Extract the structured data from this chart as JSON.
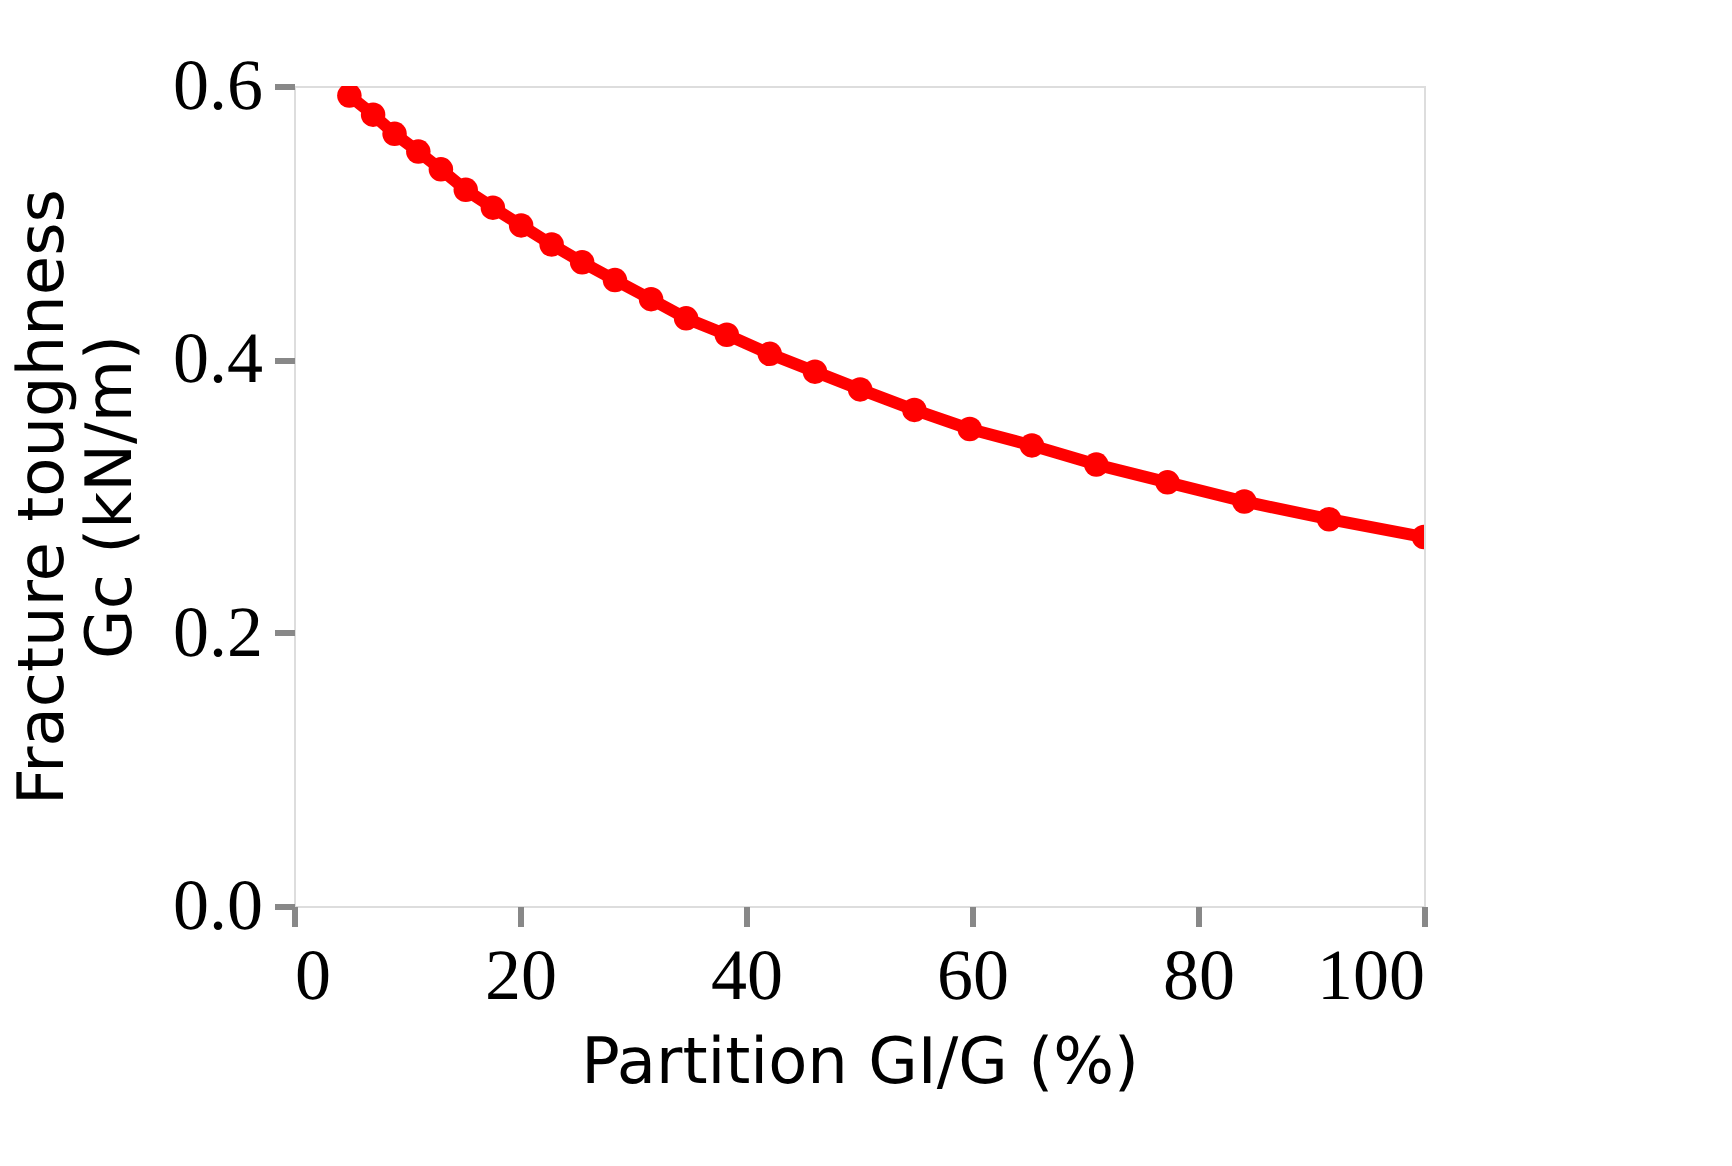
{
  "chart_data": {
    "type": "line",
    "xlabel": "Partition GI/G (%)",
    "ylabel": "Fracture toughness\nGc (kN/m)",
    "x": [
      4.9,
      7.0,
      8.9,
      11.0,
      13.0,
      15.2,
      17.6,
      20.1,
      22.8,
      25.5,
      28.4,
      31.6,
      34.7,
      38.3,
      42.1,
      46.1,
      50.1,
      54.9,
      59.8,
      65.3,
      71.0,
      77.3,
      84.1,
      91.6,
      100
    ],
    "series": [
      {
        "color": "#ff0000",
        "values": [
          0.593,
          0.579,
          0.565,
          0.552,
          0.539,
          0.524,
          0.511,
          0.498,
          0.484,
          0.471,
          0.458,
          0.444,
          0.43,
          0.418,
          0.404,
          0.391,
          0.378,
          0.363,
          0.349,
          0.337,
          0.323,
          0.31,
          0.296,
          0.283,
          0.27
        ]
      }
    ],
    "xlim": [
      0,
      100
    ],
    "ylim": [
      0,
      0.6
    ],
    "xticks": [
      0,
      20,
      40,
      60,
      80,
      100
    ],
    "yticks": [
      {
        "value": 0,
        "label": "0.0"
      },
      {
        "value": 0.2,
        "label": "0.2"
      },
      {
        "value": 0.4,
        "label": "0.4"
      },
      {
        "value": 0.6,
        "label": "0.6"
      }
    ],
    "grid": false,
    "marker": "circle",
    "line_style": "solid"
  }
}
